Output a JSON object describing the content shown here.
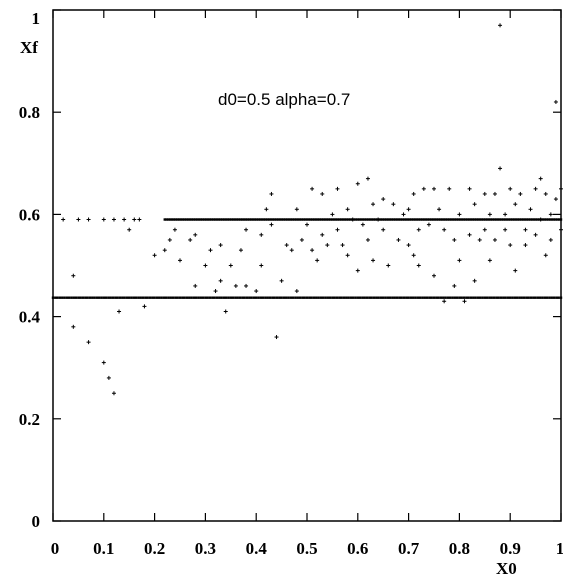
{
  "chart_data": {
    "type": "scatter",
    "title": "",
    "xlabel": "X0",
    "ylabel": "Xf",
    "annotation": "d0=0.5 alpha=0.7",
    "xlim": [
      0,
      1
    ],
    "ylim": [
      0,
      1
    ],
    "xticks": [
      "0",
      "0.1",
      "0.2",
      "0.3",
      "0.4",
      "0.5",
      "0.6",
      "0.7",
      "0.8",
      "0.9",
      "1"
    ],
    "yticks": [
      "0",
      "0.2",
      "0.4",
      "0.6",
      "0.8",
      "1"
    ],
    "xtick_values": [
      0,
      0.1,
      0.2,
      0.3,
      0.4,
      0.5,
      0.6,
      0.7,
      0.8,
      0.9,
      1
    ],
    "ytick_values": [
      0,
      0.2,
      0.4,
      0.6,
      0.8,
      1
    ],
    "grid": false,
    "colors": {
      "marker": "#000000",
      "axes": "#000000",
      "background": "#ffffff"
    },
    "bands": [
      {
        "y": 0.437,
        "x_start": 0.0,
        "x_end": 1.0
      },
      {
        "y": 0.59,
        "x_start": 0.22,
        "x_end": 1.0
      }
    ],
    "points": [
      [
        0.02,
        0.59
      ],
      [
        0.05,
        0.59
      ],
      [
        0.07,
        0.59
      ],
      [
        0.1,
        0.59
      ],
      [
        0.12,
        0.59
      ],
      [
        0.14,
        0.59
      ],
      [
        0.16,
        0.59
      ],
      [
        0.17,
        0.59
      ],
      [
        0.04,
        0.48
      ],
      [
        0.04,
        0.38
      ],
      [
        0.07,
        0.35
      ],
      [
        0.1,
        0.31
      ],
      [
        0.11,
        0.28
      ],
      [
        0.12,
        0.25
      ],
      [
        0.13,
        0.41
      ],
      [
        0.15,
        0.57
      ],
      [
        0.18,
        0.42
      ],
      [
        0.2,
        0.52
      ],
      [
        0.22,
        0.53
      ],
      [
        0.23,
        0.55
      ],
      [
        0.24,
        0.57
      ],
      [
        0.25,
        0.51
      ],
      [
        0.27,
        0.55
      ],
      [
        0.28,
        0.56
      ],
      [
        0.28,
        0.46
      ],
      [
        0.3,
        0.5
      ],
      [
        0.31,
        0.53
      ],
      [
        0.32,
        0.45
      ],
      [
        0.33,
        0.47
      ],
      [
        0.33,
        0.54
      ],
      [
        0.34,
        0.41
      ],
      [
        0.35,
        0.5
      ],
      [
        0.36,
        0.46
      ],
      [
        0.37,
        0.53
      ],
      [
        0.38,
        0.57
      ],
      [
        0.38,
        0.46
      ],
      [
        0.4,
        0.45
      ],
      [
        0.41,
        0.5
      ],
      [
        0.41,
        0.56
      ],
      [
        0.42,
        0.61
      ],
      [
        0.43,
        0.58
      ],
      [
        0.43,
        0.64
      ],
      [
        0.44,
        0.36
      ],
      [
        0.45,
        0.47
      ],
      [
        0.46,
        0.54
      ],
      [
        0.47,
        0.53
      ],
      [
        0.48,
        0.61
      ],
      [
        0.48,
        0.45
      ],
      [
        0.49,
        0.55
      ],
      [
        0.5,
        0.58
      ],
      [
        0.51,
        0.53
      ],
      [
        0.51,
        0.65
      ],
      [
        0.52,
        0.51
      ],
      [
        0.53,
        0.56
      ],
      [
        0.53,
        0.64
      ],
      [
        0.54,
        0.54
      ],
      [
        0.55,
        0.6
      ],
      [
        0.56,
        0.57
      ],
      [
        0.56,
        0.65
      ],
      [
        0.57,
        0.54
      ],
      [
        0.58,
        0.52
      ],
      [
        0.58,
        0.61
      ],
      [
        0.59,
        0.59
      ],
      [
        0.6,
        0.49
      ],
      [
        0.6,
        0.66
      ],
      [
        0.61,
        0.58
      ],
      [
        0.62,
        0.67
      ],
      [
        0.62,
        0.55
      ],
      [
        0.63,
        0.62
      ],
      [
        0.63,
        0.51
      ],
      [
        0.64,
        0.59
      ],
      [
        0.65,
        0.57
      ],
      [
        0.65,
        0.63
      ],
      [
        0.66,
        0.5
      ],
      [
        0.67,
        0.62
      ],
      [
        0.68,
        0.55
      ],
      [
        0.69,
        0.6
      ],
      [
        0.7,
        0.54
      ],
      [
        0.7,
        0.61
      ],
      [
        0.71,
        0.52
      ],
      [
        0.71,
        0.64
      ],
      [
        0.72,
        0.57
      ],
      [
        0.72,
        0.5
      ],
      [
        0.73,
        0.65
      ],
      [
        0.74,
        0.58
      ],
      [
        0.75,
        0.48
      ],
      [
        0.75,
        0.65
      ],
      [
        0.76,
        0.61
      ],
      [
        0.77,
        0.57
      ],
      [
        0.77,
        0.43
      ],
      [
        0.78,
        0.65
      ],
      [
        0.79,
        0.55
      ],
      [
        0.79,
        0.46
      ],
      [
        0.8,
        0.6
      ],
      [
        0.8,
        0.51
      ],
      [
        0.81,
        0.43
      ],
      [
        0.82,
        0.56
      ],
      [
        0.82,
        0.65
      ],
      [
        0.83,
        0.62
      ],
      [
        0.83,
        0.47
      ],
      [
        0.84,
        0.55
      ],
      [
        0.85,
        0.64
      ],
      [
        0.85,
        0.57
      ],
      [
        0.86,
        0.51
      ],
      [
        0.86,
        0.6
      ],
      [
        0.87,
        0.55
      ],
      [
        0.87,
        0.64
      ],
      [
        0.88,
        0.69
      ],
      [
        0.88,
        0.97
      ],
      [
        0.89,
        0.6
      ],
      [
        0.89,
        0.57
      ],
      [
        0.9,
        0.65
      ],
      [
        0.9,
        0.54
      ],
      [
        0.91,
        0.62
      ],
      [
        0.91,
        0.49
      ],
      [
        0.92,
        0.64
      ],
      [
        0.93,
        0.57
      ],
      [
        0.93,
        0.54
      ],
      [
        0.94,
        0.61
      ],
      [
        0.95,
        0.65
      ],
      [
        0.95,
        0.56
      ],
      [
        0.96,
        0.67
      ],
      [
        0.96,
        0.59
      ],
      [
        0.97,
        0.64
      ],
      [
        0.97,
        0.52
      ],
      [
        0.98,
        0.55
      ],
      [
        0.98,
        0.6
      ],
      [
        0.99,
        0.82
      ],
      [
        0.99,
        0.63
      ],
      [
        1.0,
        0.57
      ],
      [
        1.0,
        0.65
      ]
    ]
  }
}
